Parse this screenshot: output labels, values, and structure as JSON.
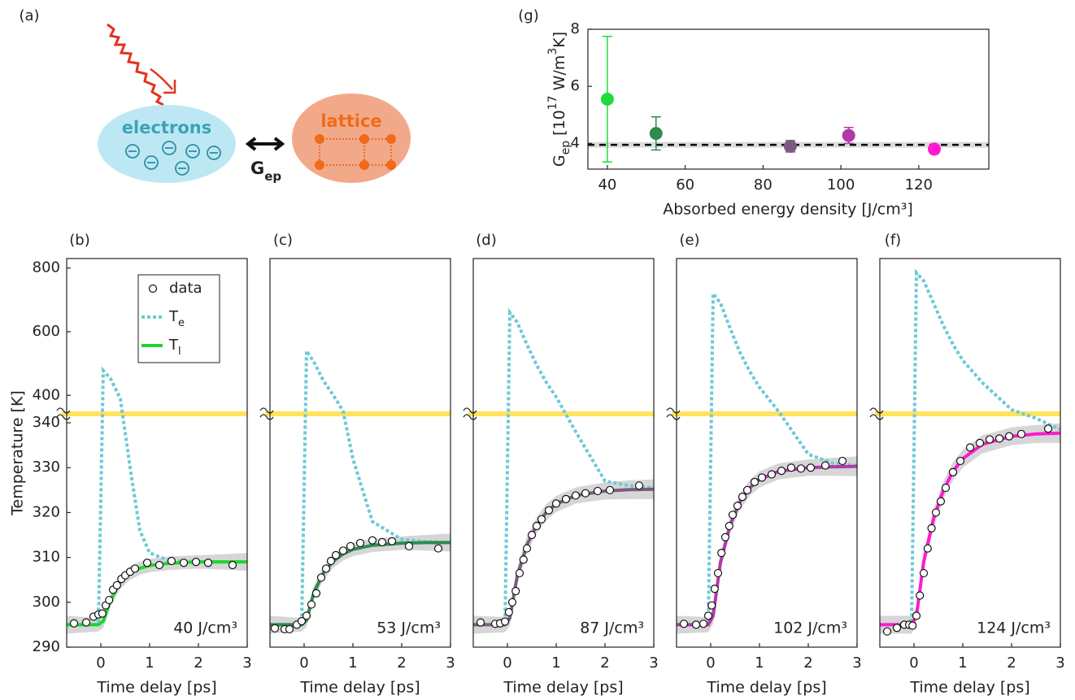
{
  "diagram": {
    "label": "(a)",
    "electrons": "electrons",
    "lattice": "lattice",
    "coupling": [
      "G",
      "ep"
    ]
  },
  "chart_data": [
    {
      "type": "scatter",
      "label": "(g)",
      "x": [
        40,
        52.5,
        87,
        102,
        124
      ],
      "values": [
        5.55,
        4.35,
        3.9,
        4.28,
        3.8
      ],
      "errors": [
        2.2,
        0.58,
        0.2,
        0.28,
        0.15
      ],
      "colors": [
        "#1fdc3a",
        "#2e8b4e",
        "#7b5c80",
        "#b23aa8",
        "#ff1ad2"
      ],
      "xlim": [
        35,
        138
      ],
      "ylim": [
        3.1,
        8
      ],
      "xticks": [
        40,
        60,
        80,
        100,
        120
      ],
      "yticks": [
        4,
        6,
        8
      ],
      "xlabel": "Absorbed energy density [J/cm³]",
      "ylabel": [
        "G",
        "ep",
        " [10",
        "17",
        " W/m",
        "3",
        "K]"
      ],
      "reference": {
        "value": 3.95,
        "band": [
          3.85,
          4.05
        ],
        "color": "#000000"
      }
    },
    {
      "type": "line",
      "label": "(b)",
      "annotation": "40 J/cm³",
      "xlabel": "Time delay [ps]",
      "ylabel": "Temperature [K]",
      "xlim": [
        -0.7,
        3
      ],
      "xticks": [
        0,
        1,
        2,
        3
      ],
      "ylim": [
        290,
        830
      ],
      "ybreak": 342,
      "yticks": [
        290,
        300,
        310,
        320,
        330,
        340,
        400,
        600,
        800
      ],
      "x": [
        -0.7,
        -0.05,
        0.05,
        0.2,
        0.4,
        0.6,
        0.8,
        1.0,
        1.4,
        2,
        2.5,
        3
      ],
      "series": [
        {
          "name": [
            "T",
            "e"
          ],
          "color": "#6ec9d6",
          "dashed": true,
          "values": [
            295,
            295,
            478,
            452,
            390,
            330,
            316,
            311,
            309.3,
            309,
            309,
            309
          ]
        },
        {
          "name": [
            "T",
            "l"
          ],
          "color": "#1ed62e",
          "values": [
            295,
            295,
            295.8,
            300.5,
            304.5,
            306.5,
            307.6,
            308.2,
            308.7,
            309,
            309,
            309
          ]
        }
      ],
      "band": {
        "lower": [
          293,
          293.5,
          294.3,
          299,
          303,
          305,
          306.1,
          306.7,
          307.2,
          307.5,
          307.3,
          307
        ],
        "upper": [
          297,
          296.5,
          297.3,
          302,
          306,
          308,
          309.1,
          309.7,
          310.2,
          310.5,
          310.7,
          311
        ]
      },
      "points": {
        "name": "data",
        "x": [
          -0.55,
          -0.3,
          -0.15,
          -0.05,
          0.03,
          0.1,
          0.17,
          0.25,
          0.33,
          0.42,
          0.5,
          0.6,
          0.7,
          0.95,
          1.2,
          1.45,
          1.7,
          1.95,
          2.2,
          2.7
        ],
        "values": [
          295.3,
          295.5,
          296.8,
          297.3,
          297.5,
          299.3,
          300.5,
          302.8,
          303.8,
          305.2,
          306,
          306.8,
          307.5,
          308.8,
          308.3,
          309.2,
          308.8,
          309,
          308.8,
          308.3
        ]
      }
    },
    {
      "type": "line",
      "label": "(c)",
      "annotation": "53 J/cm³",
      "xlabel": "Time delay [ps]",
      "xlim": [
        -0.7,
        3
      ],
      "xticks": [
        0,
        1,
        2,
        3
      ],
      "ylim": [
        290,
        830
      ],
      "ybreak": 342,
      "x": [
        -0.7,
        -0.05,
        0.05,
        0.2,
        0.4,
        0.6,
        0.8,
        1.0,
        1.4,
        2,
        2.5,
        3
      ],
      "series": [
        {
          "color": "#6ec9d6",
          "dashed": true,
          "values": [
            295,
            295,
            540,
            505,
            445,
            400,
            350,
            332,
            318,
            314,
            313.5,
            313.3
          ]
        },
        {
          "color": "#2e8b4e",
          "values": [
            295,
            295,
            296,
            302.2,
            306.6,
            309.2,
            310.8,
            311.8,
            312.7,
            313.2,
            313.3,
            313.3
          ]
        }
      ],
      "band": {
        "lower": [
          293,
          293.5,
          294.5,
          300.7,
          305.1,
          307.7,
          309.3,
          310.3,
          311.2,
          311.7,
          311.5,
          311.3
        ],
        "upper": [
          297,
          296.5,
          297.5,
          303.7,
          308.1,
          310.7,
          312.3,
          313.3,
          314.2,
          314.7,
          315,
          315.3
        ]
      },
      "points": {
        "x": [
          -0.6,
          -0.4,
          -0.3,
          -0.15,
          -0.05,
          0.05,
          0.15,
          0.25,
          0.35,
          0.45,
          0.55,
          0.65,
          0.8,
          0.95,
          1.15,
          1.4,
          1.6,
          1.8,
          2.15,
          2.75
        ],
        "values": [
          294.2,
          294,
          294,
          295,
          295.8,
          297,
          299.5,
          302,
          305.5,
          307.5,
          309.2,
          310.5,
          311.5,
          312.5,
          313.2,
          313.8,
          313.4,
          313.6,
          312.5,
          312
        ]
      }
    },
    {
      "type": "line",
      "label": "(d)",
      "annotation": "87 J/cm³",
      "xlabel": "Time delay [ps]",
      "xlim": [
        -0.7,
        3
      ],
      "xticks": [
        0,
        1,
        2,
        3
      ],
      "ylim": [
        290,
        830
      ],
      "ybreak": 342,
      "x": [
        -0.7,
        -0.05,
        0.05,
        0.2,
        0.4,
        0.6,
        0.8,
        1.0,
        1.4,
        2,
        2.5,
        3
      ],
      "series": [
        {
          "color": "#6ec9d6",
          "dashed": true,
          "values": [
            295,
            295,
            660,
            630,
            560,
            495,
            440,
            395,
            338,
            327,
            326,
            325.5
          ]
        },
        {
          "color": "#7b5c80",
          "values": [
            295,
            295,
            296.5,
            305.8,
            312.8,
            317.2,
            320.1,
            321.9,
            323.8,
            324.8,
            325.1,
            325.2
          ]
        }
      ],
      "band": {
        "lower": [
          293,
          293.3,
          294.7,
          304,
          311,
          315.4,
          318.3,
          320.1,
          322,
          322.9,
          323,
          323
        ],
        "upper": [
          297,
          296.7,
          298.3,
          307.6,
          314.6,
          319,
          321.9,
          323.7,
          325.6,
          326.7,
          327.2,
          327.4
        ]
      },
      "points": {
        "x": [
          -0.55,
          -0.25,
          -0.15,
          -0.05,
          0.03,
          0.1,
          0.17,
          0.25,
          0.33,
          0.4,
          0.5,
          0.6,
          0.7,
          0.85,
          1.0,
          1.2,
          1.4,
          1.6,
          1.85,
          2.1,
          2.7
        ],
        "values": [
          295.5,
          295.2,
          295.3,
          295.7,
          297.8,
          300,
          302.5,
          306.5,
          309.5,
          312,
          315,
          317,
          318.5,
          320.5,
          322,
          323,
          323.8,
          324.3,
          324.8,
          325,
          326
        ]
      }
    },
    {
      "type": "line",
      "label": "(e)",
      "annotation": "102 J/cm³",
      "xlabel": "Time delay [ps]",
      "xlim": [
        -0.7,
        3
      ],
      "xticks": [
        0,
        1,
        2,
        3
      ],
      "ylim": [
        290,
        830
      ],
      "ybreak": 342,
      "x": [
        -0.7,
        -0.05,
        0.05,
        0.2,
        0.4,
        0.6,
        0.8,
        1.0,
        1.4,
        2,
        2.5,
        3
      ],
      "series": [
        {
          "color": "#6ec9d6",
          "dashed": true,
          "values": [
            295,
            295,
            720,
            690,
            610,
            535,
            475,
            425,
            348,
            333,
            331,
            330.5
          ]
        },
        {
          "color": "#b23aa8",
          "values": [
            295,
            295,
            297,
            308.9,
            317.3,
            322.4,
            325.5,
            327.4,
            329.2,
            330,
            330.2,
            330.3
          ]
        }
      ],
      "band": {
        "lower": [
          293,
          293.3,
          295.2,
          307.1,
          315.5,
          320.6,
          323.7,
          325.6,
          327.4,
          328.2,
          328.2,
          328.1
        ],
        "upper": [
          297,
          296.7,
          298.8,
          310.7,
          319.1,
          324.2,
          327.3,
          329.2,
          331,
          331.8,
          332.2,
          332.5
        ]
      },
      "points": {
        "x": [
          -0.55,
          -0.3,
          -0.15,
          -0.05,
          0.02,
          0.08,
          0.15,
          0.22,
          0.3,
          0.38,
          0.45,
          0.55,
          0.65,
          0.75,
          0.9,
          1.05,
          1.25,
          1.45,
          1.65,
          1.85,
          2.05,
          2.35,
          2.7
        ],
        "values": [
          295.2,
          295,
          295.2,
          297,
          299.3,
          303,
          306.5,
          311,
          314.5,
          317,
          319.5,
          321.5,
          323.5,
          325,
          326.8,
          327.8,
          328.5,
          329.3,
          330,
          329.8,
          330,
          330.5,
          331.5
        ]
      }
    },
    {
      "type": "line",
      "label": "(f)",
      "annotation": "124 J/cm³",
      "xlabel": "Time delay [ps]",
      "xlim": [
        -0.7,
        3
      ],
      "xticks": [
        0,
        1,
        2,
        3
      ],
      "ylim": [
        290,
        830
      ],
      "ybreak": 342,
      "x": [
        -0.7,
        -0.05,
        0.05,
        0.2,
        0.4,
        0.6,
        0.8,
        1.0,
        1.4,
        2,
        2.5,
        3
      ],
      "series": [
        {
          "color": "#6ec9d6",
          "dashed": true,
          "values": [
            295,
            295,
            785,
            760,
            690,
            620,
            560,
            510,
            440,
            355,
            341,
            338.5
          ]
        },
        {
          "color": "#ff1ad2",
          "values": [
            295,
            295,
            297,
            309.1,
            318.6,
            324.9,
            329.2,
            332,
            335.2,
            337,
            337.5,
            337.7
          ]
        }
      ],
      "band": {
        "lower": [
          293,
          293,
          295,
          307.1,
          316.6,
          322.9,
          327.2,
          330,
          333.2,
          335,
          335.5,
          335.5
        ],
        "upper": [
          297,
          297,
          299,
          311.1,
          320.6,
          326.9,
          331.2,
          334,
          337.2,
          339,
          339.5,
          339.9
        ]
      },
      "points": {
        "x": [
          -0.55,
          -0.35,
          -0.2,
          -0.1,
          -0.03,
          0.05,
          0.12,
          0.2,
          0.28,
          0.36,
          0.45,
          0.55,
          0.65,
          0.8,
          0.95,
          1.15,
          1.35,
          1.55,
          1.75,
          1.95,
          2.2,
          2.75
        ],
        "values": [
          293.5,
          294.3,
          295,
          295,
          294.8,
          297,
          301.5,
          306.5,
          312,
          316.5,
          320,
          322.5,
          325.5,
          329,
          331.5,
          334.5,
          335.5,
          336.3,
          336.5,
          337,
          337.5,
          338.7
        ]
      }
    }
  ]
}
